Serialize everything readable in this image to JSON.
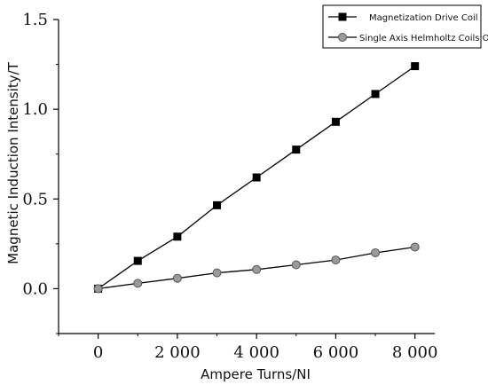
{
  "chart_data": {
    "type": "line",
    "xlabel": "Ampere Turns/NI",
    "ylabel": "Magnetic Induction Intensity/T",
    "xlim": [
      -1000,
      8500
    ],
    "ylim": [
      -0.25,
      1.5
    ],
    "x_ticks": [
      0,
      2000,
      4000,
      6000,
      8000
    ],
    "x_tick_labels": [
      "0",
      "2 000",
      "4 000",
      "6 000",
      "8 000"
    ],
    "y_ticks": [
      0.0,
      0.5,
      1.0,
      1.5
    ],
    "y_tick_labels": [
      "0.0",
      "0.5",
      "1.0",
      "1.5"
    ],
    "grid": false,
    "legend_position": "top-right",
    "x": [
      0,
      1000,
      2000,
      3000,
      4000,
      5000,
      6000,
      7000,
      8000
    ],
    "series": [
      {
        "name": "Magnetization Drive Coil",
        "values": [
          0.0,
          0.155,
          0.29,
          0.465,
          0.62,
          0.775,
          0.93,
          1.085,
          1.24
        ],
        "color": "#000000",
        "marker": "square"
      },
      {
        "name": "Single Axis Helmholtz Coils Only",
        "values": [
          0.0,
          0.03,
          0.058,
          0.088,
          0.107,
          0.133,
          0.16,
          0.2,
          0.232
        ],
        "color": "#9a9a9a",
        "marker": "circle"
      }
    ]
  }
}
